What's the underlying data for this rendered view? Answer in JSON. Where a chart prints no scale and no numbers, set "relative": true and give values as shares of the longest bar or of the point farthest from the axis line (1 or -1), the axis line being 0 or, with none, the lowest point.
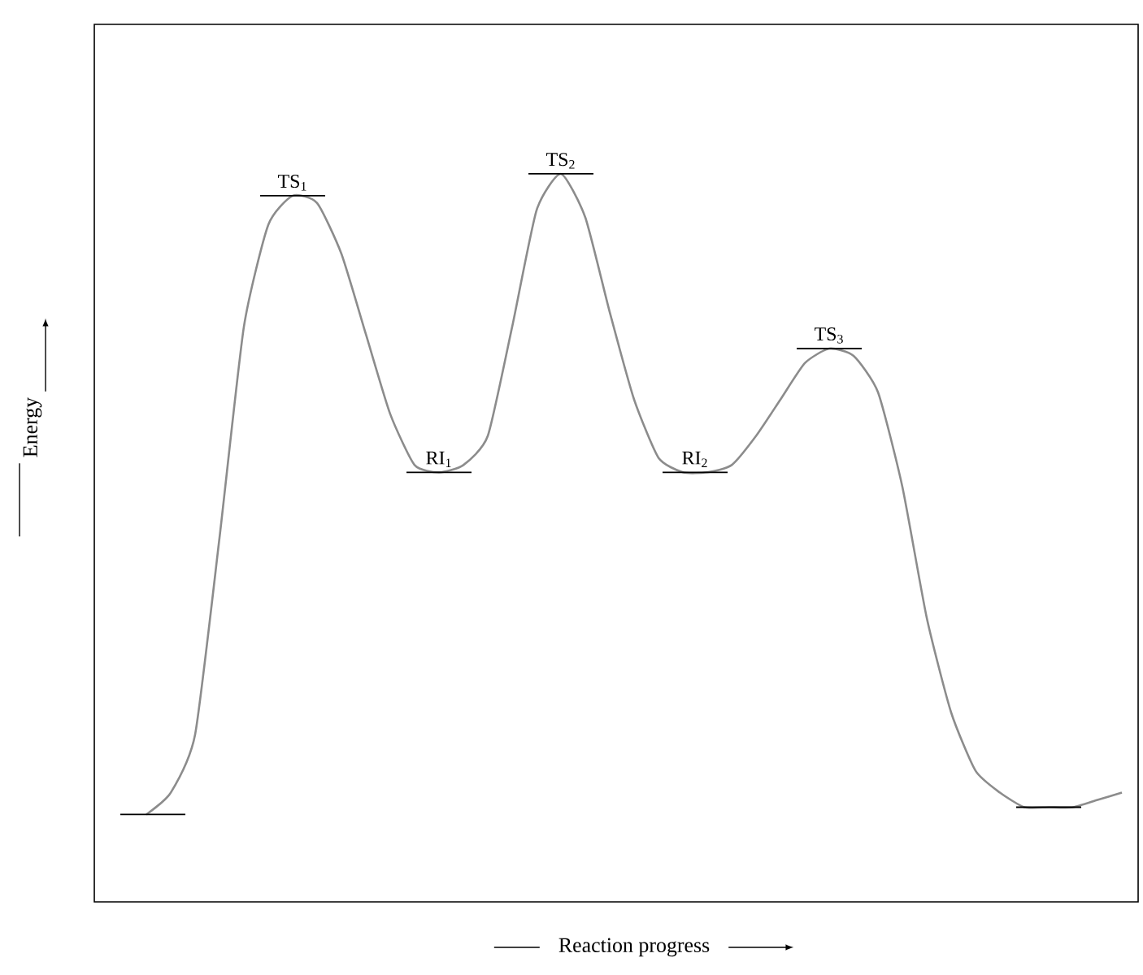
{
  "chart_data": {
    "type": "line",
    "relative": true,
    "xlabel": "Reaction progress",
    "ylabel": "Energy",
    "annotations": [
      "TS$_{1}$",
      "RI$_{1}$",
      "TS$_{2}$",
      "RI$_{2}$",
      "TS$_{3}$"
    ],
    "categories": [
      null,
      null,
      null,
      null,
      null,
      null,
      null,
      null,
      null,
      null,
      null,
      null,
      null,
      null,
      null,
      null,
      null,
      null,
      null,
      null,
      null,
      null,
      null,
      null,
      null,
      null,
      null,
      null,
      null,
      null,
      null,
      null,
      null,
      null,
      null,
      null,
      null,
      null,
      null,
      null,
      null
    ],
    "series": [
      {
        "color": "#8c8c8c",
        "values": [
          0.12,
          0.15,
          0.23,
          0.5,
          0.79,
          0.93,
          0.97,
          0.96,
          0.89,
          0.78,
          0.67,
          0.6,
          0.59,
          0.6,
          0.64,
          0.79,
          0.95,
          1.0,
          0.94,
          0.81,
          0.69,
          0.61,
          0.59,
          0.59,
          0.6,
          0.64,
          0.69,
          0.74,
          0.76,
          0.75,
          0.7,
          0.57,
          0.39,
          0.26,
          0.18,
          0.15,
          0.13,
          0.13,
          0.13,
          0.14,
          0.15
        ]
      }
    ]
  }
}
